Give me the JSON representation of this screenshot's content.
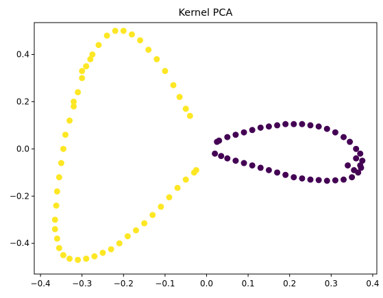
{
  "chart_data": {
    "type": "scatter",
    "title": "Kernel PCA",
    "xlabel": "",
    "ylabel": "",
    "xlim": [
      -0.415,
      0.41
    ],
    "ylim": [
      -0.53,
      0.535
    ],
    "x_ticks": [
      -0.4,
      -0.3,
      -0.2,
      -0.1,
      0.0,
      0.1,
      0.2,
      0.3,
      0.4
    ],
    "x_tick_labels": [
      "−0.4",
      "−0.3",
      "−0.2",
      "−0.1",
      "0.0",
      "0.1",
      "0.2",
      "0.3",
      "0.4"
    ],
    "y_ticks": [
      -0.4,
      -0.2,
      0.0,
      0.2,
      0.4
    ],
    "y_tick_labels": [
      "−0.4",
      "−0.2",
      "0.0",
      "0.2",
      "0.4"
    ],
    "grid": false,
    "legend": "none",
    "series": [
      {
        "color": "#fde725",
        "points": [
          [
            -0.04,
            0.14
          ],
          [
            -0.05,
            0.17
          ],
          [
            -0.065,
            0.22
          ],
          [
            -0.08,
            0.27
          ],
          [
            -0.1,
            0.33
          ],
          [
            -0.12,
            0.38
          ],
          [
            -0.14,
            0.42
          ],
          [
            -0.16,
            0.46
          ],
          [
            -0.18,
            0.485
          ],
          [
            -0.2,
            0.5
          ],
          [
            -0.22,
            0.5
          ],
          [
            -0.24,
            0.48
          ],
          [
            -0.26,
            0.44
          ],
          [
            -0.275,
            0.4
          ],
          [
            -0.29,
            0.35
          ],
          [
            -0.3,
            0.3
          ],
          [
            -0.31,
            0.24
          ],
          [
            -0.32,
            0.18
          ],
          [
            -0.33,
            0.12
          ],
          [
            -0.34,
            0.06
          ],
          [
            -0.345,
            0.0
          ],
          [
            -0.35,
            -0.06
          ],
          [
            -0.355,
            -0.12
          ],
          [
            -0.36,
            -0.18
          ],
          [
            -0.362,
            -0.24
          ],
          [
            -0.365,
            -0.3
          ],
          [
            -0.365,
            -0.34
          ],
          [
            -0.36,
            -0.38
          ],
          [
            -0.355,
            -0.42
          ],
          [
            -0.345,
            -0.45
          ],
          [
            -0.33,
            -0.465
          ],
          [
            -0.31,
            -0.47
          ],
          [
            -0.29,
            -0.465
          ],
          [
            -0.27,
            -0.455
          ],
          [
            -0.25,
            -0.44
          ],
          [
            -0.23,
            -0.425
          ],
          [
            -0.21,
            -0.4
          ],
          [
            -0.19,
            -0.37
          ],
          [
            -0.17,
            -0.345
          ],
          [
            -0.15,
            -0.315
          ],
          [
            -0.13,
            -0.28
          ],
          [
            -0.11,
            -0.245
          ],
          [
            -0.09,
            -0.205
          ],
          [
            -0.07,
            -0.165
          ],
          [
            -0.05,
            -0.13
          ],
          [
            -0.03,
            -0.1
          ],
          [
            -0.025,
            -0.09
          ],
          [
            -0.28,
            0.38
          ],
          [
            -0.3,
            0.33
          ],
          [
            -0.32,
            0.2
          ]
        ]
      },
      {
        "color": "#440154",
        "points": [
          [
            0.02,
            -0.02
          ],
          [
            0.035,
            -0.03
          ],
          [
            0.05,
            -0.04
          ],
          [
            0.07,
            -0.05
          ],
          [
            0.09,
            -0.06
          ],
          [
            0.11,
            -0.07
          ],
          [
            0.13,
            -0.08
          ],
          [
            0.15,
            -0.09
          ],
          [
            0.17,
            -0.1
          ],
          [
            0.19,
            -0.11
          ],
          [
            0.21,
            -0.12
          ],
          [
            0.23,
            -0.125
          ],
          [
            0.25,
            -0.13
          ],
          [
            0.27,
            -0.132
          ],
          [
            0.29,
            -0.135
          ],
          [
            0.31,
            -0.133
          ],
          [
            0.33,
            -0.13
          ],
          [
            0.35,
            -0.12
          ],
          [
            0.365,
            -0.1
          ],
          [
            0.372,
            -0.08
          ],
          [
            0.375,
            -0.05
          ],
          [
            0.37,
            -0.02
          ],
          [
            0.36,
            0.0
          ],
          [
            0.345,
            0.03
          ],
          [
            0.33,
            0.05
          ],
          [
            0.31,
            0.07
          ],
          [
            0.29,
            0.085
          ],
          [
            0.27,
            0.095
          ],
          [
            0.25,
            0.1
          ],
          [
            0.23,
            0.105
          ],
          [
            0.21,
            0.105
          ],
          [
            0.19,
            0.105
          ],
          [
            0.17,
            0.1
          ],
          [
            0.15,
            0.095
          ],
          [
            0.13,
            0.09
          ],
          [
            0.11,
            0.08
          ],
          [
            0.09,
            0.07
          ],
          [
            0.07,
            0.06
          ],
          [
            0.05,
            0.05
          ],
          [
            0.03,
            0.035
          ],
          [
            0.025,
            0.03
          ],
          [
            0.34,
            -0.07
          ],
          [
            0.355,
            -0.09
          ],
          [
            0.36,
            -0.04
          ],
          [
            0.37,
            -0.07
          ]
        ]
      }
    ]
  }
}
